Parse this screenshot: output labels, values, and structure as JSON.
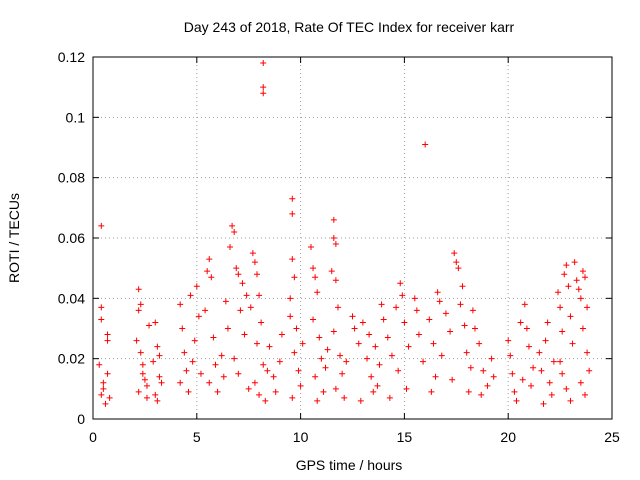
{
  "chart_data": {
    "type": "scatter",
    "title": "Day 243 of 2018, Rate Of TEC Index for receiver karr",
    "xlabel": "GPS time / hours",
    "ylabel": "ROTI / TECUs",
    "xlim": [
      0,
      25
    ],
    "ylim": [
      0,
      0.12
    ],
    "xticks": [
      0,
      5,
      10,
      15,
      20,
      25
    ],
    "xtick_labels": [
      "0",
      "5",
      "10",
      "15",
      "20",
      "25"
    ],
    "yticks": [
      0,
      0.02,
      0.04,
      0.06,
      0.08,
      0.1,
      0.12
    ],
    "ytick_labels": [
      "0",
      "0.02",
      "0.04",
      "0.06",
      "0.08",
      "0.1",
      "0.12"
    ],
    "grid": true,
    "marker": "+",
    "color": "#ff0000",
    "series": [
      {
        "name": "ROTI",
        "points": [
          [
            0.4,
            0.064
          ],
          [
            0.4,
            0.037
          ],
          [
            0.4,
            0.033
          ],
          [
            0.3,
            0.018
          ],
          [
            0.5,
            0.012
          ],
          [
            0.4,
            0.008
          ],
          [
            0.6,
            0.005
          ],
          [
            0.7,
            0.015
          ],
          [
            0.5,
            0.01
          ],
          [
            0.8,
            0.007
          ],
          [
            0.7,
            0.028
          ],
          [
            0.7,
            0.026
          ],
          [
            2.2,
            0.043
          ],
          [
            2.3,
            0.038
          ],
          [
            2.2,
            0.036
          ],
          [
            2.1,
            0.026
          ],
          [
            2.3,
            0.022
          ],
          [
            2.4,
            0.018
          ],
          [
            2.5,
            0.013
          ],
          [
            2.2,
            0.009
          ],
          [
            2.6,
            0.007
          ],
          [
            2.4,
            0.015
          ],
          [
            2.7,
            0.031
          ],
          [
            2.6,
            0.011
          ],
          [
            3.0,
            0.032
          ],
          [
            3.1,
            0.024
          ],
          [
            2.9,
            0.019
          ],
          [
            3.2,
            0.014
          ],
          [
            3.0,
            0.008
          ],
          [
            3.3,
            0.012
          ],
          [
            3.1,
            0.006
          ],
          [
            3.2,
            0.021
          ],
          [
            4.2,
            0.038
          ],
          [
            4.3,
            0.03
          ],
          [
            4.4,
            0.022
          ],
          [
            4.5,
            0.016
          ],
          [
            4.2,
            0.012
          ],
          [
            4.6,
            0.009
          ],
          [
            4.8,
            0.019
          ],
          [
            4.9,
            0.026
          ],
          [
            5.0,
            0.044
          ],
          [
            4.7,
            0.041
          ],
          [
            5.1,
            0.034
          ],
          [
            5.2,
            0.015
          ],
          [
            5.5,
            0.049
          ],
          [
            5.6,
            0.053
          ],
          [
            5.7,
            0.047
          ],
          [
            5.4,
            0.036
          ],
          [
            5.8,
            0.027
          ],
          [
            5.9,
            0.018
          ],
          [
            5.6,
            0.012
          ],
          [
            6.0,
            0.009
          ],
          [
            6.2,
            0.021
          ],
          [
            6.4,
            0.039
          ],
          [
            6.5,
            0.03
          ],
          [
            6.3,
            0.014
          ],
          [
            6.7,
            0.064
          ],
          [
            6.8,
            0.062
          ],
          [
            6.6,
            0.057
          ],
          [
            6.9,
            0.05
          ],
          [
            7.0,
            0.048
          ],
          [
            7.2,
            0.045
          ],
          [
            7.4,
            0.041
          ],
          [
            7.1,
            0.036
          ],
          [
            7.3,
            0.028
          ],
          [
            6.8,
            0.02
          ],
          [
            7.0,
            0.015
          ],
          [
            7.5,
            0.01
          ],
          [
            7.7,
            0.055
          ],
          [
            7.8,
            0.052
          ],
          [
            7.9,
            0.048
          ],
          [
            8.0,
            0.041
          ],
          [
            7.6,
            0.037
          ],
          [
            8.1,
            0.032
          ],
          [
            7.9,
            0.025
          ],
          [
            8.2,
            0.018
          ],
          [
            7.8,
            0.012
          ],
          [
            8.0,
            0.008
          ],
          [
            8.3,
            0.006
          ],
          [
            8.4,
            0.016
          ],
          [
            8.2,
            0.118
          ],
          [
            8.2,
            0.11
          ],
          [
            8.2,
            0.108
          ],
          [
            8.5,
            0.024
          ],
          [
            8.7,
            0.014
          ],
          [
            8.8,
            0.009
          ],
          [
            9.0,
            0.019
          ],
          [
            9.1,
            0.028
          ],
          [
            9.6,
            0.073
          ],
          [
            9.6,
            0.068
          ],
          [
            9.6,
            0.053
          ],
          [
            9.7,
            0.047
          ],
          [
            9.5,
            0.04
          ],
          [
            9.5,
            0.034
          ],
          [
            9.8,
            0.03
          ],
          [
            9.7,
            0.022
          ],
          [
            9.9,
            0.016
          ],
          [
            10.0,
            0.011
          ],
          [
            9.6,
            0.007
          ],
          [
            10.1,
            0.025
          ],
          [
            10.5,
            0.057
          ],
          [
            10.6,
            0.05
          ],
          [
            10.7,
            0.047
          ],
          [
            10.8,
            0.042
          ],
          [
            10.6,
            0.033
          ],
          [
            10.9,
            0.027
          ],
          [
            11.0,
            0.02
          ],
          [
            10.7,
            0.014
          ],
          [
            11.1,
            0.009
          ],
          [
            10.8,
            0.006
          ],
          [
            11.2,
            0.017
          ],
          [
            11.3,
            0.023
          ],
          [
            11.6,
            0.066
          ],
          [
            11.6,
            0.06
          ],
          [
            11.7,
            0.058
          ],
          [
            11.5,
            0.049
          ],
          [
            11.7,
            0.046
          ],
          [
            11.8,
            0.037
          ],
          [
            11.6,
            0.029
          ],
          [
            11.9,
            0.021
          ],
          [
            12.0,
            0.015
          ],
          [
            11.7,
            0.01
          ],
          [
            12.1,
            0.007
          ],
          [
            12.2,
            0.019
          ],
          [
            12.5,
            0.034
          ],
          [
            12.6,
            0.03
          ],
          [
            12.8,
            0.025
          ],
          [
            13.0,
            0.032
          ],
          [
            13.2,
            0.02
          ],
          [
            13.4,
            0.014
          ],
          [
            13.5,
            0.009
          ],
          [
            13.3,
            0.028
          ],
          [
            13.7,
            0.011
          ],
          [
            13.8,
            0.018
          ],
          [
            12.9,
            0.006
          ],
          [
            13.6,
            0.024
          ],
          [
            13.9,
            0.038
          ],
          [
            14.0,
            0.033
          ],
          [
            14.2,
            0.027
          ],
          [
            14.4,
            0.021
          ],
          [
            14.6,
            0.037
          ],
          [
            14.8,
            0.045
          ],
          [
            14.9,
            0.041
          ],
          [
            15.0,
            0.032
          ],
          [
            14.7,
            0.016
          ],
          [
            15.1,
            0.01
          ],
          [
            14.3,
            0.007
          ],
          [
            15.2,
            0.024
          ],
          [
            15.5,
            0.04
          ],
          [
            15.6,
            0.036
          ],
          [
            15.7,
            0.028
          ],
          [
            15.9,
            0.019
          ],
          [
            16.0,
            0.091
          ],
          [
            16.2,
            0.033
          ],
          [
            16.4,
            0.025
          ],
          [
            16.5,
            0.014
          ],
          [
            16.6,
            0.042
          ],
          [
            16.7,
            0.039
          ],
          [
            16.3,
            0.009
          ],
          [
            16.8,
            0.021
          ],
          [
            17.0,
            0.035
          ],
          [
            17.2,
            0.029
          ],
          [
            17.4,
            0.055
          ],
          [
            17.5,
            0.052
          ],
          [
            17.6,
            0.05
          ],
          [
            17.8,
            0.044
          ],
          [
            17.7,
            0.038
          ],
          [
            17.9,
            0.031
          ],
          [
            18.0,
            0.022
          ],
          [
            17.3,
            0.013
          ],
          [
            18.1,
            0.009
          ],
          [
            18.2,
            0.017
          ],
          [
            18.3,
            0.036
          ],
          [
            18.4,
            0.03
          ],
          [
            18.6,
            0.025
          ],
          [
            18.8,
            0.016
          ],
          [
            19.0,
            0.011
          ],
          [
            19.2,
            0.02
          ],
          [
            18.7,
            0.008
          ],
          [
            19.3,
            0.014
          ],
          [
            20.0,
            0.026
          ],
          [
            20.1,
            0.021
          ],
          [
            20.2,
            0.015
          ],
          [
            20.3,
            0.009
          ],
          [
            20.4,
            0.006
          ],
          [
            20.6,
            0.032
          ],
          [
            20.8,
            0.038
          ],
          [
            20.9,
            0.03
          ],
          [
            21.0,
            0.024
          ],
          [
            21.2,
            0.017
          ],
          [
            21.1,
            0.011
          ],
          [
            20.7,
            0.013
          ],
          [
            21.5,
            0.022
          ],
          [
            21.6,
            0.016
          ],
          [
            21.8,
            0.026
          ],
          [
            21.9,
            0.032
          ],
          [
            22.0,
            0.012
          ],
          [
            22.1,
            0.008
          ],
          [
            21.7,
            0.005
          ],
          [
            22.2,
            0.019
          ],
          [
            22.4,
            0.042
          ],
          [
            22.5,
            0.037
          ],
          [
            22.6,
            0.029
          ],
          [
            22.7,
            0.048
          ],
          [
            22.8,
            0.051
          ],
          [
            22.9,
            0.044
          ],
          [
            23.0,
            0.034
          ],
          [
            23.1,
            0.025
          ],
          [
            22.6,
            0.015
          ],
          [
            22.8,
            0.01
          ],
          [
            23.0,
            0.006
          ],
          [
            22.5,
            0.019
          ],
          [
            23.2,
            0.052
          ],
          [
            23.3,
            0.046
          ],
          [
            23.4,
            0.043
          ],
          [
            23.5,
            0.04
          ],
          [
            23.6,
            0.049
          ],
          [
            23.7,
            0.047
          ],
          [
            23.8,
            0.037
          ],
          [
            23.6,
            0.03
          ],
          [
            23.8,
            0.022
          ],
          [
            23.9,
            0.016
          ],
          [
            23.5,
            0.012
          ],
          [
            23.7,
            0.008
          ]
        ]
      }
    ]
  }
}
